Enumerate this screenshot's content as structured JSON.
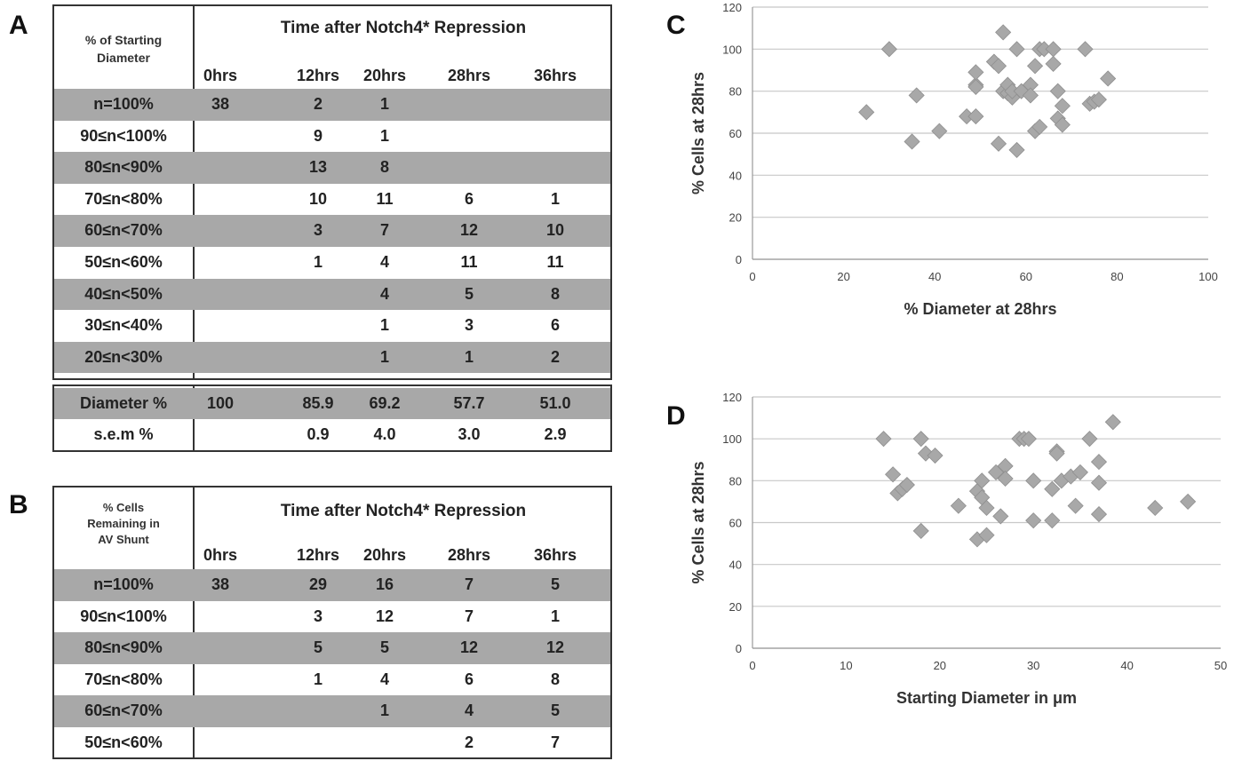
{
  "panels": {
    "a": "A",
    "b": "B",
    "c": "C",
    "d": "D"
  },
  "table_a": {
    "header_label_lines": [
      "% of Starting",
      "Diameter"
    ],
    "title": "Time after Notch4* Repression",
    "time_cols": [
      "0hrs",
      "12hrs",
      "20hrs",
      "28hrs",
      "36hrs"
    ],
    "rows": [
      {
        "label": "n=100%",
        "shaded": true,
        "cells": [
          "38",
          "2",
          "1",
          "",
          ""
        ]
      },
      {
        "label": "90≤n<100%",
        "shaded": false,
        "cells": [
          "",
          "9",
          "1",
          "",
          ""
        ]
      },
      {
        "label": "80≤n<90%",
        "shaded": true,
        "cells": [
          "",
          "13",
          "8",
          "",
          ""
        ]
      },
      {
        "label": "70≤n<80%",
        "shaded": false,
        "cells": [
          "",
          "10",
          "11",
          "6",
          "1"
        ]
      },
      {
        "label": "60≤n<70%",
        "shaded": true,
        "cells": [
          "",
          "3",
          "7",
          "12",
          "10"
        ]
      },
      {
        "label": "50≤n<60%",
        "shaded": false,
        "cells": [
          "",
          "1",
          "4",
          "11",
          "11"
        ]
      },
      {
        "label": "40≤n<50%",
        "shaded": true,
        "cells": [
          "",
          "",
          "4",
          "5",
          "8"
        ]
      },
      {
        "label": "30≤n<40%",
        "shaded": false,
        "cells": [
          "",
          "",
          "1",
          "3",
          "6"
        ]
      },
      {
        "label": "20≤n<30%",
        "shaded": true,
        "cells": [
          "",
          "",
          "1",
          "1",
          "2"
        ]
      }
    ],
    "summary_rows": [
      {
        "label": "Diameter %",
        "shaded": true,
        "cells": [
          "100",
          "85.9",
          "69.2",
          "57.7",
          "51.0"
        ]
      },
      {
        "label": "s.e.m %",
        "shaded": false,
        "cells": [
          "",
          "0.9",
          "4.0",
          "3.0",
          "2.9"
        ]
      }
    ]
  },
  "table_b": {
    "header_label_lines": [
      "% Cells",
      "Remaining  in",
      "AV Shunt"
    ],
    "title": "Time after Notch4* Repression",
    "time_cols": [
      "0hrs",
      "12hrs",
      "20hrs",
      "28hrs",
      "36hrs"
    ],
    "rows": [
      {
        "label": "n=100%",
        "shaded": true,
        "cells": [
          "38",
          "29",
          "16",
          "7",
          "5"
        ]
      },
      {
        "label": "90≤n<100%",
        "shaded": false,
        "cells": [
          "",
          "3",
          "12",
          "7",
          "1"
        ]
      },
      {
        "label": "80≤n<90%",
        "shaded": true,
        "cells": [
          "",
          "5",
          "5",
          "12",
          "12"
        ]
      },
      {
        "label": "70≤n<80%",
        "shaded": false,
        "cells": [
          "",
          "1",
          "4",
          "6",
          "8"
        ]
      },
      {
        "label": "60≤n<70%",
        "shaded": true,
        "cells": [
          "",
          "",
          "1",
          "4",
          "5"
        ]
      },
      {
        "label": "50≤n<60%",
        "shaded": false,
        "cells": [
          "",
          "",
          "",
          "2",
          "7"
        ]
      }
    ]
  },
  "chart_data": [
    {
      "type": "scatter",
      "title": "",
      "xlabel": "% Diameter at 28hrs",
      "ylabel": "% Cells at 28hrs",
      "xlim": [
        0,
        100
      ],
      "ylim": [
        0,
        120
      ],
      "xticks": [
        "0",
        "20",
        "40",
        "60",
        "80",
        "100"
      ],
      "yticks": [
        "0",
        "20",
        "40",
        "60",
        "80",
        "100",
        "120"
      ],
      "grid": "horizontal",
      "marker_color": "#a8a8a8",
      "x": [
        25,
        30,
        35,
        36,
        41,
        47,
        49,
        49,
        49,
        49,
        53,
        54,
        54,
        55,
        55,
        56,
        56,
        57,
        57,
        58,
        58,
        59,
        61,
        61,
        62,
        62,
        63,
        63,
        64,
        66,
        66,
        67,
        67,
        68,
        68,
        73,
        74,
        75,
        76,
        78
      ],
      "y": [
        70,
        100,
        56,
        78,
        61,
        68,
        68,
        83,
        89,
        82,
        94,
        92,
        55,
        80,
        108,
        79,
        83,
        77,
        80,
        100,
        52,
        80,
        83,
        78,
        61,
        92,
        100,
        63,
        100,
        100,
        93,
        80,
        67,
        64,
        73,
        100,
        74,
        75,
        76,
        86
      ]
    },
    {
      "type": "scatter",
      "title": "",
      "xlabel": "Starting Diameter in μm",
      "ylabel": "% Cells at 28hrs",
      "xlim": [
        0,
        50
      ],
      "ylim": [
        0,
        120
      ],
      "xticks": [
        "0",
        "10",
        "20",
        "30",
        "40",
        "50"
      ],
      "yticks": [
        "0",
        "20",
        "40",
        "60",
        "80",
        "100",
        "120"
      ],
      "grid": "horizontal",
      "marker_color": "#a8a8a8",
      "x": [
        14,
        15,
        15.5,
        16,
        16.5,
        18,
        18,
        18.5,
        19.5,
        22,
        24,
        24,
        24.5,
        24.5,
        25,
        25,
        26,
        26.5,
        27,
        27,
        28.5,
        29,
        29.5,
        30,
        30,
        32,
        32,
        32.5,
        32.5,
        33,
        34,
        34.5,
        35,
        36,
        37,
        37,
        37,
        38.5,
        43,
        46.5
      ],
      "y": [
        100,
        83,
        74,
        76,
        78,
        100,
        56,
        93,
        92,
        68,
        75,
        52,
        80,
        72,
        67,
        54,
        84,
        63,
        87,
        81,
        100,
        100,
        100,
        80,
        61,
        76,
        61,
        94,
        93,
        80,
        82,
        68,
        84,
        100,
        89,
        79,
        64,
        108,
        67,
        70
      ]
    }
  ]
}
